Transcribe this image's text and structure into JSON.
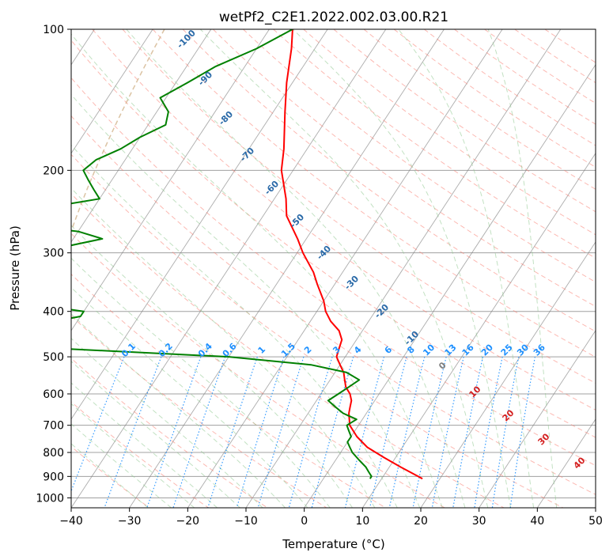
{
  "chart_data": {
    "type": "line",
    "title": "wetPf2_C2E1.2022.002.03.00.R21",
    "xlabel": "Temperature (°C)",
    "ylabel": "Pressure (hPa)",
    "xlim": [
      -40,
      50
    ],
    "ylim": [
      1050,
      100
    ],
    "y_scale": "log",
    "grid": true,
    "x_ticks": [
      "−40",
      "−30",
      "−20",
      "−10",
      "0",
      "10",
      "20",
      "30",
      "40",
      "50"
    ],
    "y_ticks": [
      "100",
      "200",
      "300",
      "400",
      "500",
      "600",
      "700",
      "800",
      "900",
      "1000"
    ],
    "colors": {
      "temperature": "#ff0000",
      "dewpoint": "#008000",
      "dry_adiabat": "#fa8072",
      "moist_adiabat": "#90c890",
      "mixing_ratio": "#1e90ff",
      "isotherm": "#808080",
      "isobar": "#a0a0a0",
      "lcl": "#d2b48c"
    },
    "series": [
      {
        "key": "temperature",
        "pressure": [
          100,
          110,
          130,
          150,
          180,
          200,
          230,
          250,
          280,
          300,
          330,
          350,
          380,
          400,
          420,
          440,
          460,
          480,
          500,
          520,
          540,
          560,
          580,
          600,
          620,
          640,
          660,
          700,
          740,
          780,
          820,
          860,
          900,
          910
        ],
        "temperature": [
          -56,
          -54,
          -51,
          -48,
          -44,
          -42,
          -38,
          -36,
          -31.5,
          -29,
          -25,
          -23,
          -20,
          -18.5,
          -16.5,
          -14,
          -12.5,
          -12,
          -11.5,
          -10,
          -8.5,
          -7.5,
          -6.5,
          -5,
          -4,
          -3.5,
          -3,
          -1.5,
          1,
          4,
          8,
          12,
          16,
          17
        ]
      },
      {
        "key": "dewpoint",
        "pressure": [
          100,
          110,
          120,
          130,
          140,
          150,
          160,
          170,
          180,
          190,
          200,
          210,
          220,
          230,
          240,
          250,
          260,
          270,
          280,
          290,
          300,
          310,
          320,
          330,
          340,
          350,
          360,
          370,
          380,
          390,
          400,
          410,
          420,
          430,
          440,
          450,
          460,
          470,
          480,
          490,
          500,
          520,
          540,
          560,
          580,
          600,
          620,
          640,
          660,
          680,
          700,
          720,
          740,
          760,
          780,
          800,
          830,
          860,
          880,
          900,
          910
        ],
        "temperature": [
          -56,
          -60,
          -65,
          -68,
          -71,
          -68,
          -67,
          -70,
          -72,
          -75,
          -76,
          -74,
          -72,
          -70,
          -78,
          -99,
          -83,
          -70,
          -65,
          -70,
          -74,
          -78,
          -83,
          -88,
          -93,
          -87,
          -82,
          -77,
          -72,
          -67,
          -60,
          -60,
          -64,
          -68,
          -72,
          -77,
          -76,
          -70,
          -60,
          -45,
          -30,
          -15,
          -8,
          -5,
          -6,
          -7,
          -8,
          -6,
          -4,
          -1,
          -2,
          -1,
          0,
          0,
          1,
          2,
          4,
          6,
          7,
          8,
          8
        ]
      }
    ],
    "dry_adiabat_labels": [
      "10",
      "20",
      "30",
      "40"
    ],
    "moist_adiabat_labels": [
      "-100",
      "-90",
      "-80",
      "-70",
      "-60",
      "-50",
      "-40",
      "-30",
      "-20",
      "-10",
      "0"
    ],
    "mixing_ratio_labels": [
      "0.1",
      "0.2",
      "0.4",
      "0.6",
      "1",
      "1.5",
      "2",
      "3",
      "4",
      "6",
      "8",
      "10",
      "13",
      "16",
      "20",
      "25",
      "30",
      "36"
    ]
  }
}
